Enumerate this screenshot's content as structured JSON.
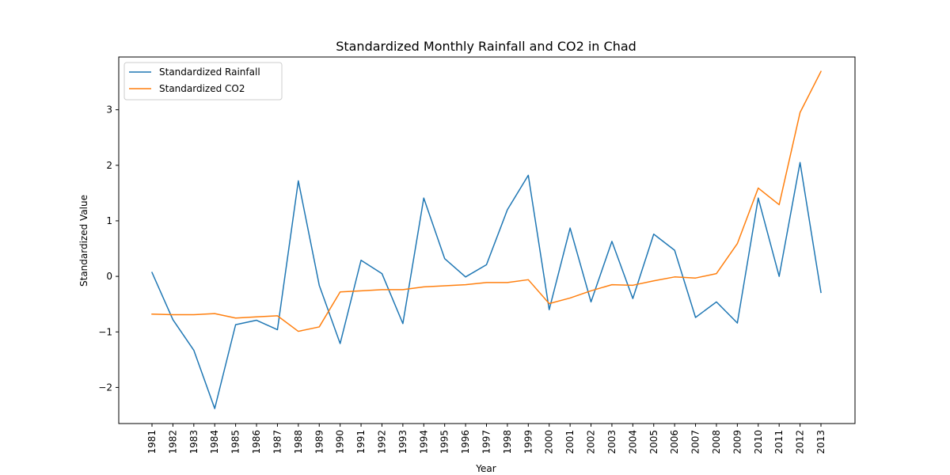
{
  "chart_data": {
    "type": "line",
    "title": "Standardized Monthly Rainfall and CO2 in Chad",
    "xlabel": "Year",
    "ylabel": "Standardized Value",
    "ylim": [
      -2.65,
      3.95
    ],
    "yticks": [
      -2,
      -1,
      0,
      1,
      2,
      3
    ],
    "grid": false,
    "legend_position": "top-left",
    "x": [
      "1981",
      "1982",
      "1983",
      "1984",
      "1985",
      "1986",
      "1987",
      "1988",
      "1989",
      "1990",
      "1991",
      "1992",
      "1993",
      "1994",
      "1995",
      "1996",
      "1997",
      "1998",
      "1999",
      "2000",
      "2001",
      "2002",
      "2003",
      "2004",
      "2005",
      "2006",
      "2007",
      "2008",
      "2009",
      "2010",
      "2011",
      "2012",
      "2013"
    ],
    "series": [
      {
        "name": "Standardized Rainfall",
        "color": "#1f77b4",
        "values": [
          0.07,
          -0.78,
          -1.33,
          -2.38,
          -0.87,
          -0.79,
          -0.96,
          1.72,
          -0.16,
          -1.21,
          0.29,
          0.05,
          -0.85,
          1.41,
          0.32,
          -0.01,
          0.21,
          1.2,
          1.82,
          -0.6,
          0.87,
          -0.46,
          0.63,
          -0.4,
          0.76,
          0.47,
          -0.74,
          -0.46,
          -0.84,
          1.41,
          0.0,
          2.05,
          -0.29
        ]
      },
      {
        "name": "Standardized CO2",
        "color": "#ff7f0e",
        "values": [
          -0.68,
          -0.69,
          -0.69,
          -0.67,
          -0.75,
          -0.73,
          -0.71,
          -0.99,
          -0.91,
          -0.28,
          -0.26,
          -0.24,
          -0.24,
          -0.19,
          -0.17,
          -0.15,
          -0.11,
          -0.11,
          -0.06,
          -0.49,
          -0.39,
          -0.26,
          -0.15,
          -0.16,
          -0.08,
          -0.01,
          -0.03,
          0.05,
          0.59,
          1.59,
          1.29,
          2.95,
          3.69
        ]
      }
    ]
  }
}
